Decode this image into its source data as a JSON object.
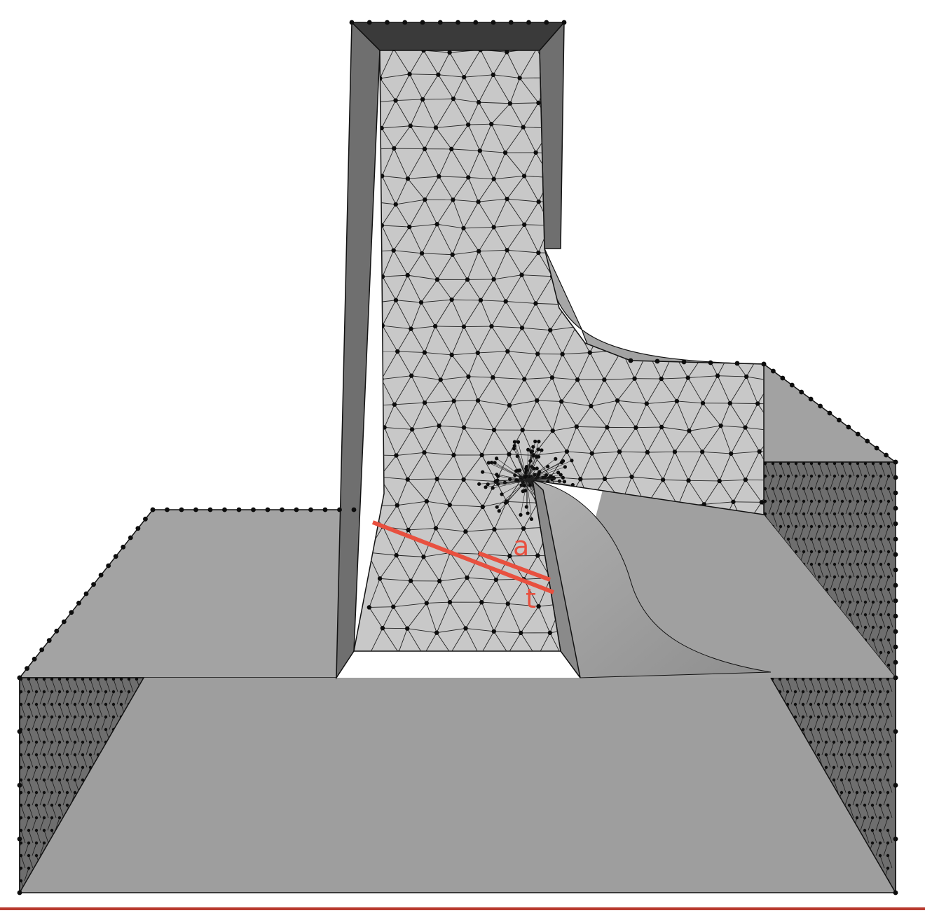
{
  "diagram": {
    "labels": {
      "a": "a",
      "t": "t"
    },
    "colors": {
      "background": "#ffffff",
      "face_light": "#c6c6c6",
      "face_mid": "#a0a0a0",
      "face_dark": "#6d6d6d",
      "mesh_line": "#1a1a1a",
      "node": "#0d0d0d",
      "annotation": "#e8503f",
      "bottom_border": "#b83a2f"
    }
  }
}
